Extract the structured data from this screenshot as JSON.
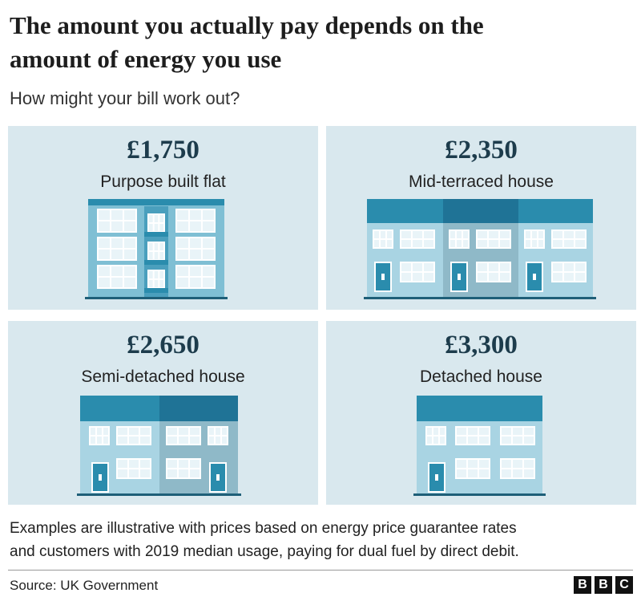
{
  "header": {
    "title": [
      "The amount you actually pay depends on the",
      "amount of energy you use"
    ],
    "subtitle": "How might your bill work out?"
  },
  "cards": [
    {
      "price": "£1,750",
      "label": "Purpose built flat"
    },
    {
      "price": "£2,350",
      "label": "Mid-terraced house"
    },
    {
      "price": "£2,650",
      "label": "Semi-detached house"
    },
    {
      "price": "£3,300",
      "label": "Detached house"
    }
  ],
  "note": [
    "Examples are illustrative with prices based on energy price guarantee rates",
    "and customers with 2019 median usage, paying for dual fuel by direct debit."
  ],
  "footer": {
    "source": "Source: UK Government",
    "logo": [
      "B",
      "B",
      "C"
    ]
  }
}
